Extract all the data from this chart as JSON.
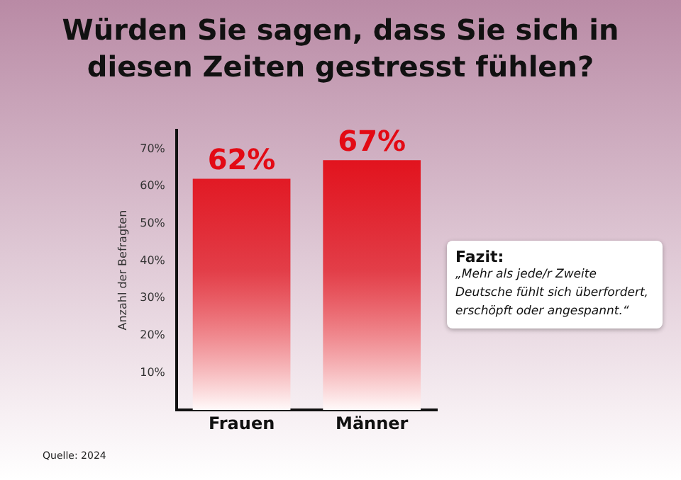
{
  "chart_data": {
    "type": "bar",
    "title": "Würden Sie sagen, dass Sie sich in diesen Zeiten gestresst fühlen?",
    "ylabel": "Anzahl der Befragten",
    "categories": [
      "Frauen",
      "Männer"
    ],
    "values": [
      62,
      67
    ],
    "value_labels": [
      "62%",
      "67%"
    ],
    "color": "#e30a14",
    "ylim": [
      0,
      75
    ],
    "yticks": [
      {
        "value": 10,
        "label": "10%"
      },
      {
        "value": 20,
        "label": "20%"
      },
      {
        "value": 30,
        "label": "30%"
      },
      {
        "value": 40,
        "label": "40%"
      },
      {
        "value": 50,
        "label": "50%"
      },
      {
        "value": 60,
        "label": "60%"
      },
      {
        "value": 70,
        "label": "70%"
      }
    ],
    "grid": false,
    "legend": false,
    "annotations": [
      "Fazit:",
      "„Mehr als jede/r Zweite Deutsche fühlt sich überfordert, erschöpft oder angespannt.“",
      "Quelle: 2024"
    ]
  }
}
